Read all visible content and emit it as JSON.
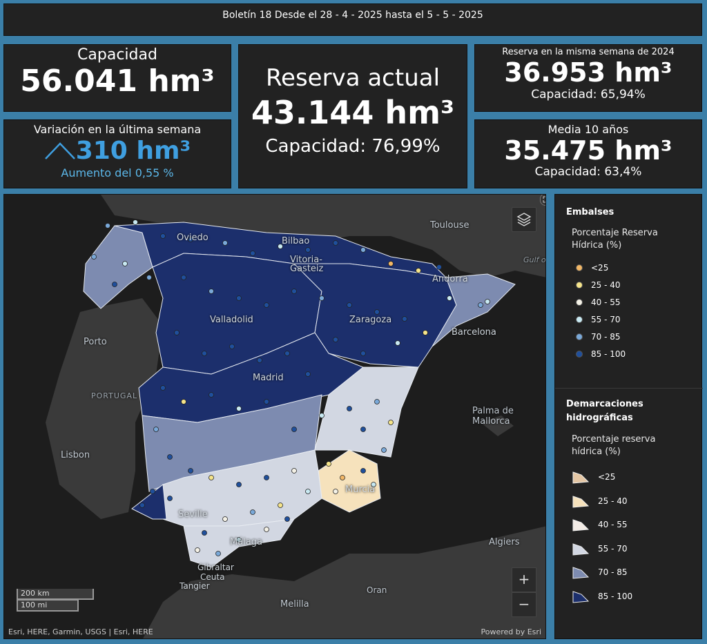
{
  "header": {
    "title": "Boletín 18 Desde el 28 - 4 - 2025 hasta el 5 - 5 - 2025"
  },
  "capacity": {
    "label": "Capacidad",
    "value": "56.041 hm³"
  },
  "variation": {
    "label": "Variación en la última semana",
    "value": "310 hm³",
    "sub": "Aumento del 0,55 %",
    "icon": "chevron-up-icon",
    "color": "#3f9fe0"
  },
  "reserve": {
    "label": "Reserva actual",
    "value": "43.144 hm³",
    "sub": "Capacidad: 76,99%"
  },
  "last_year": {
    "label": "Reserva en la misma semana de 2024",
    "value": "36.953 hm³",
    "sub": "Capacidad: 65,94%"
  },
  "avg10": {
    "label": "Media 10 años",
    "value": "35.475 hm³",
    "sub": "Capacidad: 63,4%"
  },
  "map": {
    "labels": {
      "toulouse": "Toulouse",
      "gulf": "Gulf o",
      "oviedo": "Oviedo",
      "bilbao": "Bilbao",
      "vitoria": "Vitoria-\nGasteiz",
      "andorra": "Andorra",
      "valladolid": "Valladolid",
      "zaragoza": "Zaragoza",
      "porto": "Porto",
      "barcelona": "Barcelona",
      "portugal": "PORTUGAL",
      "madrid": "Madrid",
      "palma": "Palma de\nMallorca",
      "lisbon": "Lisbon",
      "murcia": "Murcia",
      "seville": "Seville",
      "malaga": "Málaga",
      "algiers": "Algiers",
      "gibraltar": "Gibraltar",
      "ceuta": "Ceuta",
      "tangier": "Tangier",
      "oran": "Oran",
      "melilla": "Melilla"
    },
    "scale_km": "200 km",
    "scale_mi": "100 mi",
    "zoom_in": "+",
    "zoom_out": "−",
    "attribution": "Esri, HERE, Garmin, USGS | Esri, HERE",
    "powered": "Powered by Esri"
  },
  "legend": {
    "reservoirs_title": "Embalses",
    "reservoirs_sub": "Porcentaje Reserva Hídrica (%)",
    "reservoir_classes": [
      {
        "label": "<25",
        "color": "#f2b766"
      },
      {
        "label": "25 - 40",
        "color": "#f5e48a"
      },
      {
        "label": "40 - 55",
        "color": "#f4f1e6"
      },
      {
        "label": "55 - 70",
        "color": "#c8e9f2"
      },
      {
        "label": "70 - 85",
        "color": "#79a8d8"
      },
      {
        "label": "85 - 100",
        "color": "#1f4f9c"
      }
    ],
    "districts_title": "Demarcaciones hidrográficas",
    "districts_sub": "Porcentaje reserva hídrica (%)",
    "district_classes": [
      {
        "label": "<25",
        "color": "#e4c6a4"
      },
      {
        "label": "25 - 40",
        "color": "#f6e2bc"
      },
      {
        "label": "40 - 55",
        "color": "#f3ece6"
      },
      {
        "label": "55 - 70",
        "color": "#d2d7e2"
      },
      {
        "label": "70 - 85",
        "color": "#7d8bb0"
      },
      {
        "label": "85 - 100",
        "color": "#1c2f6c"
      }
    ]
  }
}
